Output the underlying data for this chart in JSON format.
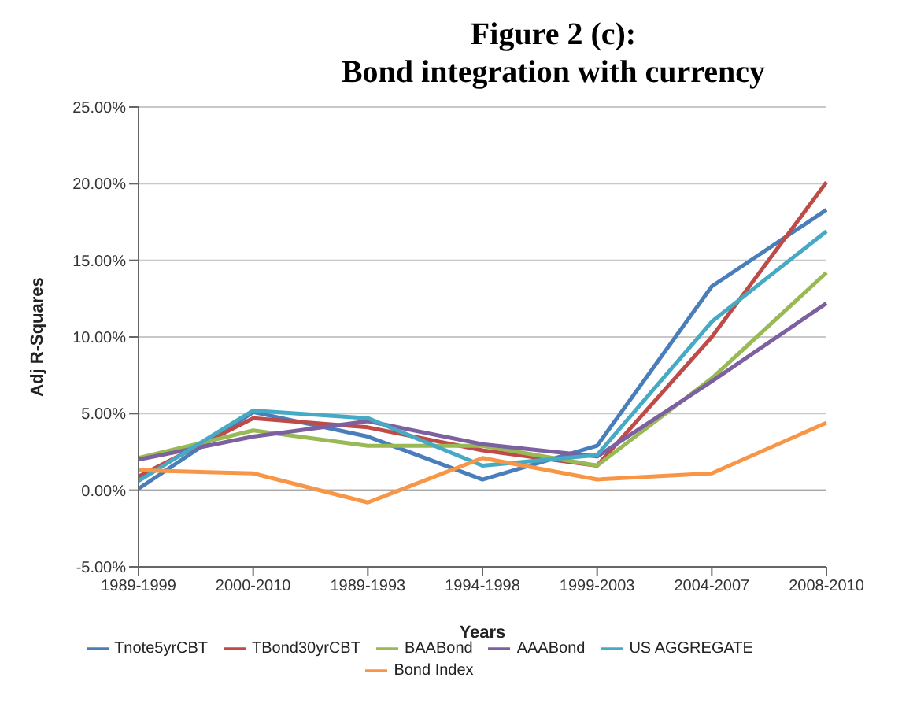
{
  "chart_data": {
    "type": "line",
    "title": "Figure 2 (c):\nBond integration with currency",
    "xlabel": "Years",
    "ylabel": "Adj R-Squares",
    "categories": [
      "1989-1999",
      "2000-2010",
      "1989-1993",
      "1994-1998",
      "1999-2003",
      "2004-2007",
      "2008-2010"
    ],
    "series": [
      {
        "name": "Tnote5yrCBT",
        "color": "#4a7ebb",
        "values": [
          0.1,
          5.1,
          3.5,
          0.7,
          2.9,
          13.3,
          18.3
        ]
      },
      {
        "name": "TBond30yrCBT",
        "color": "#be4b48",
        "values": [
          0.9,
          4.7,
          4.1,
          2.6,
          1.6,
          10.0,
          20.1
        ]
      },
      {
        "name": "BAABond",
        "color": "#98b954",
        "values": [
          2.1,
          3.9,
          2.9,
          2.9,
          1.6,
          7.3,
          14.2
        ]
      },
      {
        "name": "AAABond",
        "color": "#7d60a0",
        "values": [
          2.0,
          3.5,
          4.5,
          3.0,
          2.2,
          7.1,
          12.2
        ]
      },
      {
        "name": "US AGGREGATE",
        "color": "#46aac5",
        "values": [
          0.6,
          5.2,
          4.7,
          1.6,
          2.3,
          11.0,
          16.9
        ]
      },
      {
        "name": "Bond Index",
        "color": "#f79646",
        "values": [
          1.3,
          1.1,
          -0.8,
          2.1,
          0.7,
          1.1,
          4.4
        ]
      }
    ],
    "ylim": [
      -5,
      25
    ],
    "yticks": [
      {
        "value": -5,
        "label": "-5.00%"
      },
      {
        "value": 0,
        "label": "0.00%"
      },
      {
        "value": 5,
        "label": "5.00%"
      },
      {
        "value": 10,
        "label": "10.00%"
      },
      {
        "value": 15,
        "label": "15.00%"
      },
      {
        "value": 20,
        "label": "20.00%"
      },
      {
        "value": 25,
        "label": "25.00%"
      }
    ],
    "grid": "y",
    "legend": "bottom",
    "marker": "none",
    "line_style": "solid"
  }
}
